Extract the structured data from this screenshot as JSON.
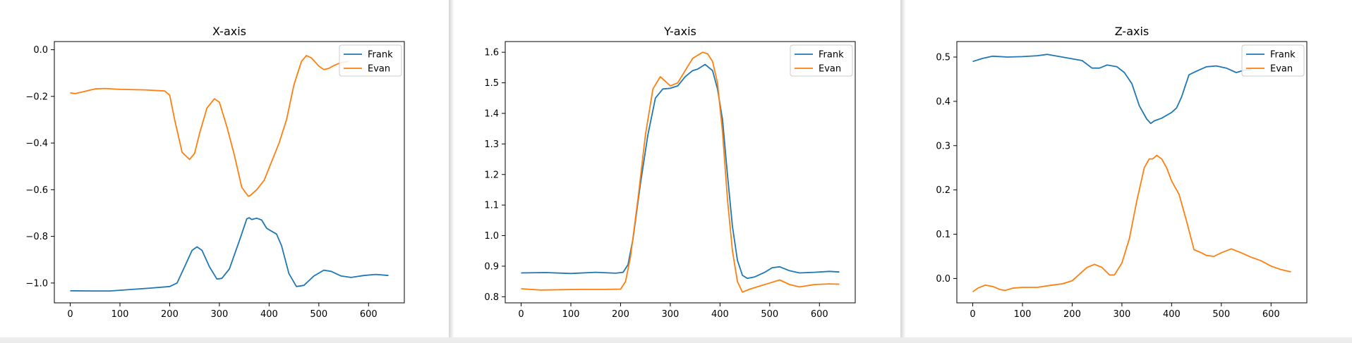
{
  "colors": {
    "frank": "#1f77b4",
    "evan": "#ff7f0e"
  },
  "chart_data": [
    {
      "type": "line",
      "title": "X-axis",
      "xlabel": "",
      "ylabel": "",
      "xlim": [
        -32,
        672
      ],
      "ylim": [
        -1.085,
        0.035
      ],
      "xticks": [
        0,
        100,
        200,
        300,
        400,
        500,
        600
      ],
      "yticks": [
        0.0,
        -0.2,
        -0.4,
        -0.6,
        -0.8,
        -1.0
      ],
      "ytick_labels": [
        "0.0",
        "−0.2",
        "−0.4",
        "−0.6",
        "−0.8",
        "−1.0"
      ],
      "grid": false,
      "legend": "top-right",
      "series": [
        {
          "name": "Frank",
          "color": "#1f77b4",
          "x": [
            0,
            40,
            80,
            120,
            160,
            200,
            215,
            230,
            245,
            255,
            265,
            280,
            295,
            305,
            320,
            340,
            355,
            360,
            365,
            375,
            385,
            395,
            405,
            415,
            425,
            440,
            455,
            470,
            490,
            510,
            525,
            545,
            565,
            590,
            615,
            640
          ],
          "y": [
            -1.033,
            -1.034,
            -1.034,
            -1.028,
            -1.022,
            -1.015,
            -1.0,
            -0.93,
            -0.86,
            -0.845,
            -0.86,
            -0.93,
            -0.983,
            -0.98,
            -0.94,
            -0.82,
            -0.725,
            -0.72,
            -0.728,
            -0.722,
            -0.73,
            -0.765,
            -0.778,
            -0.79,
            -0.84,
            -0.96,
            -1.015,
            -1.01,
            -0.97,
            -0.945,
            -0.95,
            -0.97,
            -0.976,
            -0.968,
            -0.963,
            -0.968
          ]
        },
        {
          "name": "Evan",
          "color": "#ff7f0e",
          "x": [
            0,
            10,
            30,
            50,
            70,
            100,
            150,
            190,
            200,
            210,
            225,
            240,
            250,
            260,
            275,
            290,
            300,
            315,
            330,
            345,
            358,
            362,
            375,
            390,
            405,
            420,
            435,
            450,
            465,
            475,
            485,
            500,
            510,
            520,
            530,
            545,
            560
          ],
          "y": [
            -0.185,
            -0.188,
            -0.178,
            -0.168,
            -0.166,
            -0.17,
            -0.172,
            -0.177,
            -0.195,
            -0.3,
            -0.44,
            -0.47,
            -0.445,
            -0.36,
            -0.25,
            -0.21,
            -0.225,
            -0.33,
            -0.45,
            -0.59,
            -0.628,
            -0.625,
            -0.6,
            -0.56,
            -0.48,
            -0.4,
            -0.3,
            -0.15,
            -0.05,
            -0.025,
            -0.035,
            -0.07,
            -0.085,
            -0.08,
            -0.068,
            -0.055,
            -0.05
          ]
        }
      ]
    },
    {
      "type": "line",
      "title": "Y-axis",
      "xlabel": "",
      "ylabel": "",
      "xlim": [
        -32,
        672
      ],
      "ylim": [
        0.78,
        1.635
      ],
      "xticks": [
        0,
        100,
        200,
        300,
        400,
        500,
        600
      ],
      "yticks": [
        0.8,
        0.9,
        1.0,
        1.1,
        1.2,
        1.3,
        1.4,
        1.5,
        1.6
      ],
      "ytick_labels": [
        "0.8",
        "0.9",
        "1.0",
        "1.1",
        "1.2",
        "1.3",
        "1.4",
        "1.5",
        "1.6"
      ],
      "grid": false,
      "legend": "top-right",
      "series": [
        {
          "name": "Frank",
          "color": "#1f77b4",
          "x": [
            0,
            50,
            100,
            150,
            190,
            205,
            215,
            225,
            240,
            255,
            270,
            285,
            300,
            315,
            330,
            345,
            355,
            370,
            385,
            395,
            405,
            415,
            425,
            435,
            445,
            455,
            470,
            490,
            505,
            520,
            540,
            560,
            590,
            620,
            640
          ],
          "y": [
            0.878,
            0.879,
            0.876,
            0.88,
            0.877,
            0.88,
            0.905,
            0.99,
            1.17,
            1.33,
            1.45,
            1.48,
            1.482,
            1.49,
            1.52,
            1.54,
            1.545,
            1.56,
            1.54,
            1.48,
            1.38,
            1.2,
            1.03,
            0.92,
            0.87,
            0.86,
            0.865,
            0.88,
            0.895,
            0.898,
            0.885,
            0.878,
            0.88,
            0.883,
            0.881
          ]
        },
        {
          "name": "Evan",
          "color": "#ff7f0e",
          "x": [
            0,
            40,
            80,
            120,
            170,
            200,
            210,
            220,
            235,
            250,
            265,
            280,
            290,
            300,
            315,
            330,
            345,
            355,
            365,
            375,
            385,
            395,
            405,
            415,
            425,
            435,
            445,
            460,
            480,
            500,
            520,
            540,
            560,
            590,
            620,
            640
          ],
          "y": [
            0.826,
            0.822,
            0.823,
            0.824,
            0.824,
            0.825,
            0.85,
            0.93,
            1.12,
            1.33,
            1.48,
            1.52,
            1.505,
            1.49,
            1.5,
            1.54,
            1.58,
            1.59,
            1.6,
            1.595,
            1.57,
            1.5,
            1.34,
            1.12,
            0.95,
            0.85,
            0.815,
            0.825,
            0.835,
            0.845,
            0.855,
            0.84,
            0.832,
            0.84,
            0.842,
            0.841
          ]
        }
      ]
    },
    {
      "type": "line",
      "title": "Z-axis",
      "xlabel": "",
      "ylabel": "",
      "xlim": [
        -32,
        672
      ],
      "ylim": [
        -0.055,
        0.535
      ],
      "xticks": [
        0,
        100,
        200,
        300,
        400,
        500,
        600
      ],
      "yticks": [
        0.0,
        0.1,
        0.2,
        0.3,
        0.4,
        0.5
      ],
      "ytick_labels": [
        "0.0",
        "0.1",
        "0.2",
        "0.3",
        "0.4",
        "0.5"
      ],
      "grid": false,
      "legend": "top-right",
      "series": [
        {
          "name": "Frank",
          "color": "#1f77b4",
          "x": [
            0,
            20,
            40,
            70,
            100,
            130,
            150,
            170,
            200,
            220,
            240,
            255,
            270,
            290,
            305,
            320,
            335,
            350,
            358,
            365,
            380,
            400,
            410,
            420,
            435,
            450,
            470,
            490,
            510,
            530,
            545,
            560
          ],
          "y": [
            0.49,
            0.497,
            0.502,
            0.5,
            0.501,
            0.503,
            0.506,
            0.502,
            0.496,
            0.492,
            0.475,
            0.475,
            0.482,
            0.478,
            0.465,
            0.44,
            0.39,
            0.36,
            0.35,
            0.356,
            0.362,
            0.375,
            0.385,
            0.41,
            0.46,
            0.468,
            0.478,
            0.48,
            0.475,
            0.465,
            0.47,
            0.472
          ]
        },
        {
          "name": "Evan",
          "color": "#ff7f0e",
          "x": [
            0,
            10,
            25,
            40,
            55,
            65,
            80,
            100,
            130,
            160,
            180,
            200,
            215,
            230,
            245,
            260,
            275,
            285,
            300,
            315,
            330,
            345,
            355,
            362,
            370,
            380,
            390,
            400,
            415,
            430,
            445,
            460,
            470,
            485,
            500,
            520,
            540,
            560,
            580,
            600,
            620,
            640
          ],
          "y": [
            -0.03,
            -0.022,
            -0.015,
            -0.018,
            -0.025,
            -0.027,
            -0.022,
            -0.02,
            -0.02,
            -0.015,
            -0.012,
            -0.005,
            0.01,
            0.025,
            0.032,
            0.025,
            0.008,
            0.008,
            0.035,
            0.09,
            0.175,
            0.25,
            0.27,
            0.27,
            0.278,
            0.27,
            0.25,
            0.22,
            0.19,
            0.13,
            0.065,
            0.058,
            0.052,
            0.05,
            0.058,
            0.067,
            0.058,
            0.048,
            0.04,
            0.028,
            0.02,
            0.015
          ]
        }
      ]
    }
  ]
}
